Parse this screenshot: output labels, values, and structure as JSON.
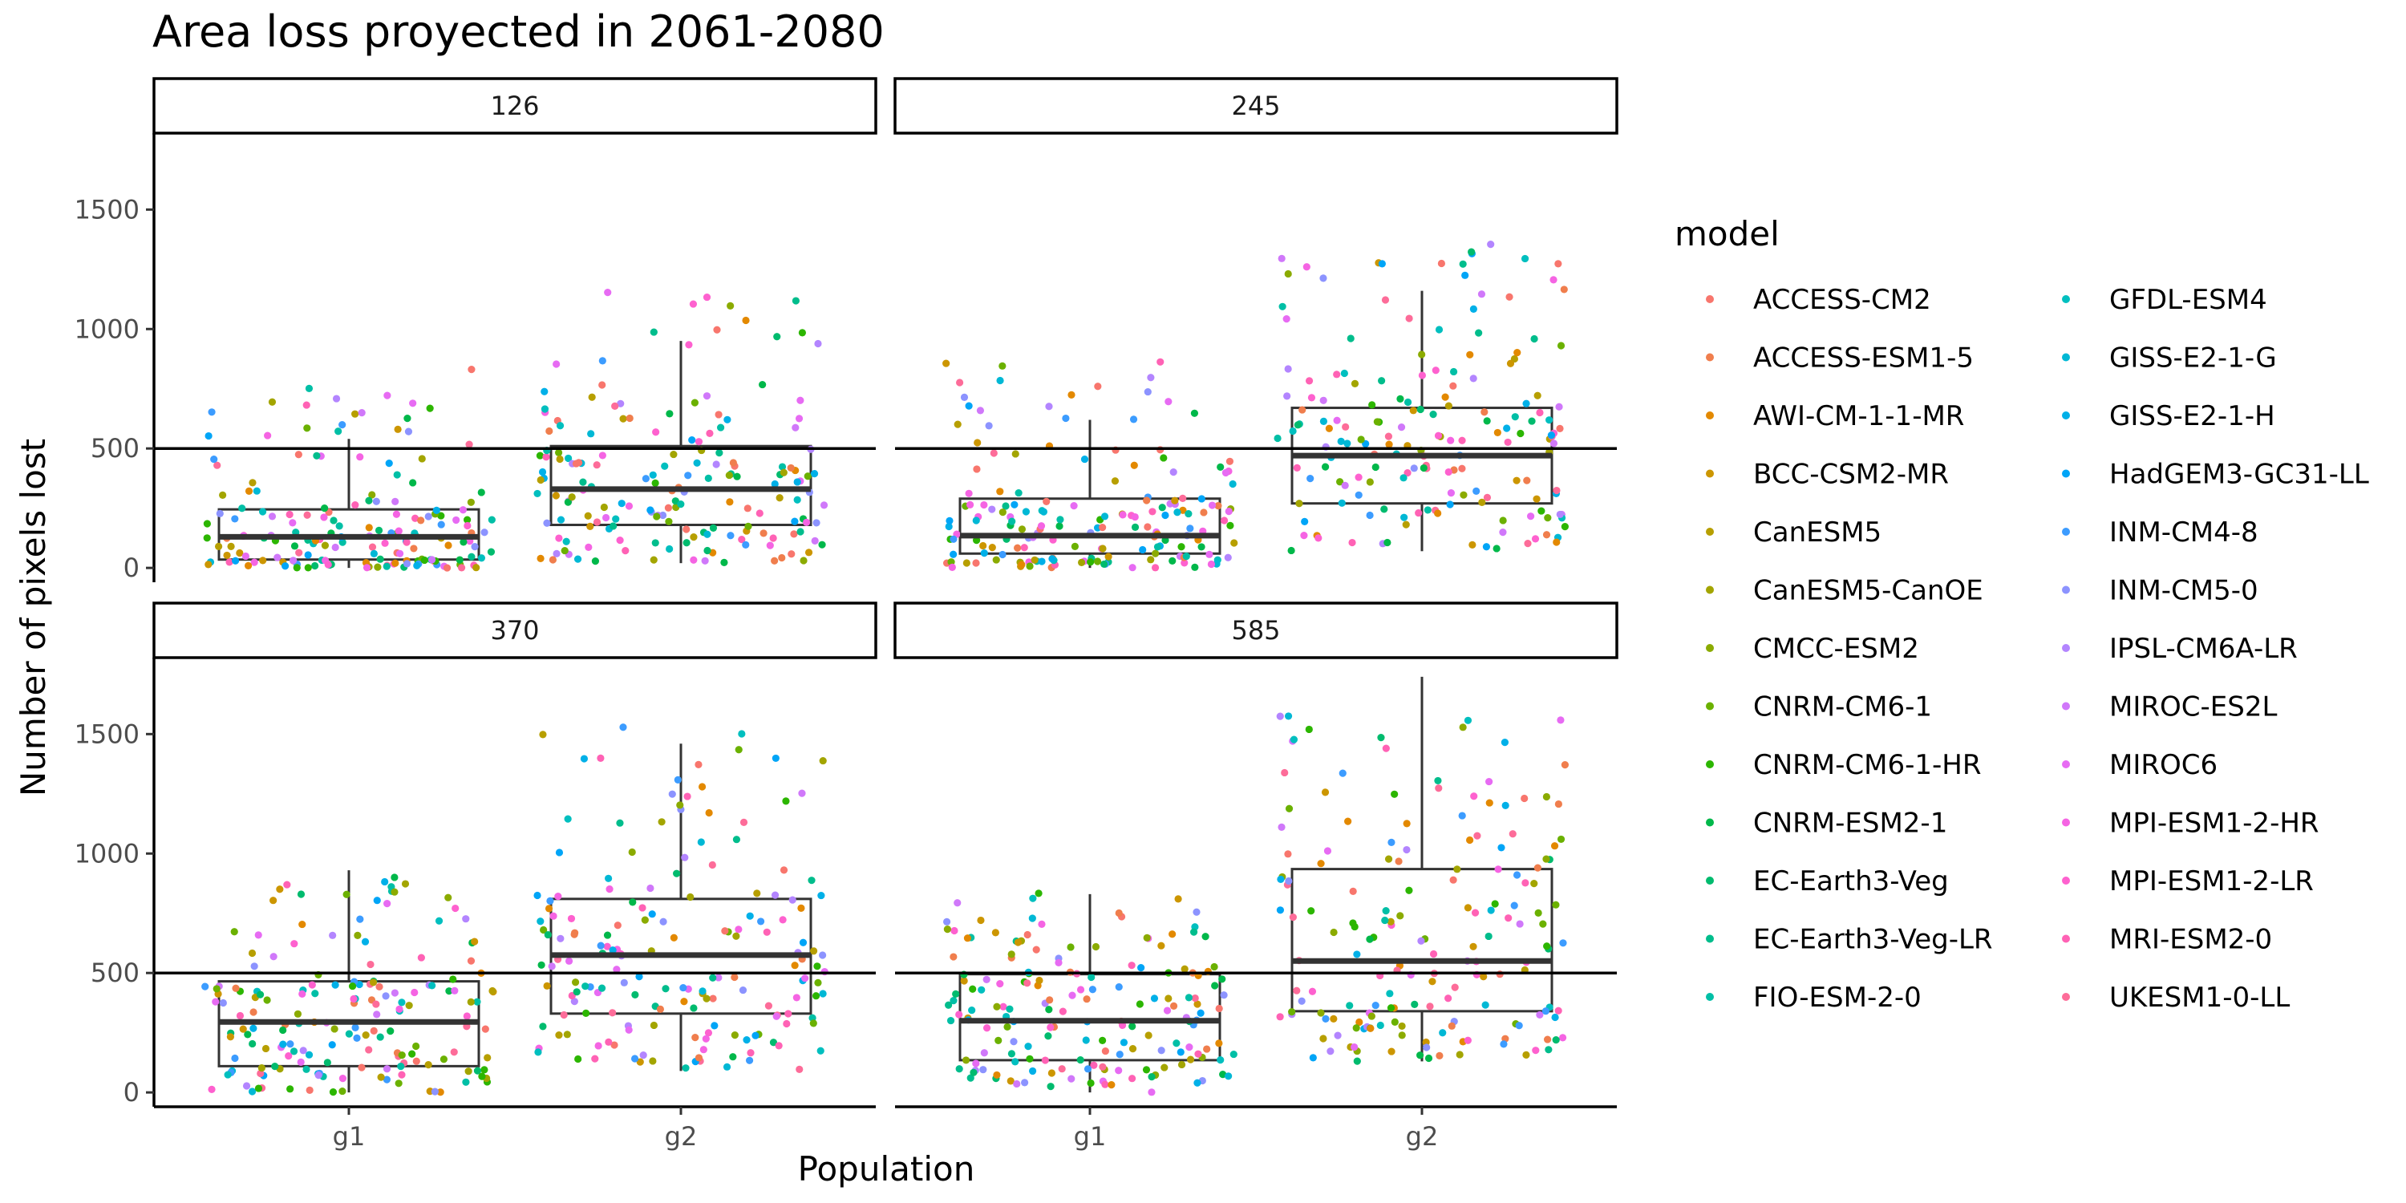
{
  "chart_data": {
    "type": "box-jitter-faceted",
    "title": "Area loss proyected in 2061-2080",
    "xlabel": "Population",
    "ylabel": "Number of pixels lost",
    "ylim": [
      -60,
      1820
    ],
    "yticks": [
      0,
      500,
      1000,
      1500
    ],
    "categories": [
      "g1",
      "g2"
    ],
    "reference_line": 500,
    "legend": {
      "title": "model",
      "placement": "right",
      "entries": [
        {
          "name": "ACCESS-CM2",
          "color": "#F8766D"
        },
        {
          "name": "ACCESS-ESM1-5",
          "color": "#F07E4D"
        },
        {
          "name": "AWI-CM-1-1-MR",
          "color": "#E38900"
        },
        {
          "name": "BCC-CSM2-MR",
          "color": "#CC9600"
        },
        {
          "name": "CanESM5",
          "color": "#B79F00"
        },
        {
          "name": "CanESM5-CanOE",
          "color": "#A3A500"
        },
        {
          "name": "CMCC-ESM2",
          "color": "#8BAB00"
        },
        {
          "name": "CNRM-CM6-1",
          "color": "#6BB100"
        },
        {
          "name": "CNRM-CM6-1-HR",
          "color": "#2CB600"
        },
        {
          "name": "CNRM-ESM2-1",
          "color": "#00B84A"
        },
        {
          "name": "EC-Earth3-Veg",
          "color": "#00BB6E"
        },
        {
          "name": "EC-Earth3-Veg-LR",
          "color": "#00BD8C"
        },
        {
          "name": "FIO-ESM-2-0",
          "color": "#00BFA6"
        },
        {
          "name": "GFDL-ESM4",
          "color": "#00BFBF"
        },
        {
          "name": "GISS-E2-1-G",
          "color": "#00B8D5"
        },
        {
          "name": "GISS-E2-1-H",
          "color": "#00B0E8"
        },
        {
          "name": "HadGEM3-GC31-LL",
          "color": "#00A5F7"
        },
        {
          "name": "INM-CM4-8",
          "color": "#3C9CFF"
        },
        {
          "name": "INM-CM5-0",
          "color": "#8C93FF"
        },
        {
          "name": "IPSL-CM6A-LR",
          "color": "#B385FF"
        },
        {
          "name": "MIROC-ES2L",
          "color": "#D078FA"
        },
        {
          "name": "MIROC6",
          "color": "#E76BF3"
        },
        {
          "name": "MPI-ESM1-2-HR",
          "color": "#F564E3"
        },
        {
          "name": "MPI-ESM1-2-LR",
          "color": "#FE61CF"
        },
        {
          "name": "MRI-ESM2-0",
          "color": "#FF62B5"
        },
        {
          "name": "UKESM1-0-LL",
          "color": "#FD6C99"
        }
      ]
    },
    "facets": [
      {
        "label": "126",
        "boxes": [
          {
            "category": "g1",
            "min": 0,
            "q1": 35,
            "median": 130,
            "q3": 245,
            "max": 540
          },
          {
            "category": "g2",
            "min": 20,
            "q1": 180,
            "median": 330,
            "q3": 510,
            "max": 950
          }
        ],
        "points": [
          {
            "category": "g1",
            "min": 0,
            "max": 860,
            "count": 170
          },
          {
            "category": "g2",
            "min": 0,
            "max": 1170,
            "count": 170
          }
        ]
      },
      {
        "label": "245",
        "boxes": [
          {
            "category": "g1",
            "min": 0,
            "q1": 60,
            "median": 135,
            "q3": 290,
            "max": 620
          },
          {
            "category": "g2",
            "min": 70,
            "q1": 270,
            "median": 470,
            "q3": 670,
            "max": 1160
          }
        ],
        "points": [
          {
            "category": "g1",
            "min": 0,
            "max": 890,
            "count": 170
          },
          {
            "category": "g2",
            "min": 60,
            "max": 1360,
            "count": 170
          }
        ]
      },
      {
        "label": "370",
        "boxes": [
          {
            "category": "g1",
            "min": 0,
            "q1": 110,
            "median": 295,
            "q3": 465,
            "max": 930
          },
          {
            "category": "g2",
            "min": 90,
            "q1": 330,
            "median": 575,
            "q3": 810,
            "max": 1460
          }
        ],
        "points": [
          {
            "category": "g1",
            "min": 0,
            "max": 940,
            "count": 170
          },
          {
            "category": "g2",
            "min": 90,
            "max": 1600,
            "count": 170
          }
        ]
      },
      {
        "label": "585",
        "boxes": [
          {
            "category": "g1",
            "min": 0,
            "q1": 135,
            "median": 300,
            "q3": 495,
            "max": 830
          },
          {
            "category": "g2",
            "min": 130,
            "q1": 340,
            "median": 550,
            "q3": 935,
            "max": 1740
          }
        ],
        "points": [
          {
            "category": "g1",
            "min": 0,
            "max": 840,
            "count": 170
          },
          {
            "category": "g2",
            "min": 120,
            "max": 1750,
            "count": 170
          }
        ]
      }
    ]
  }
}
